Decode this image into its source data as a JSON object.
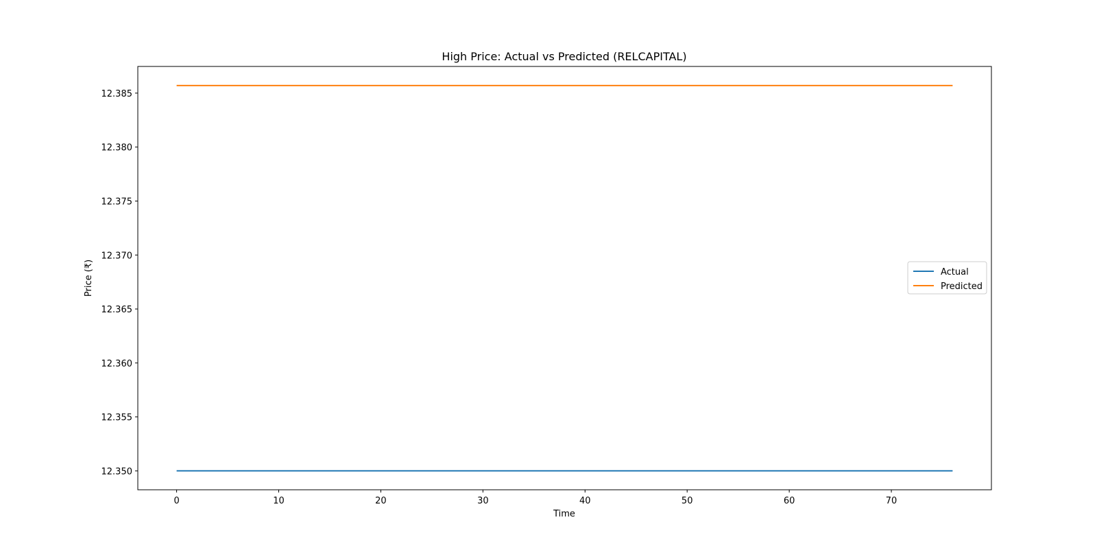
{
  "chart_data": {
    "type": "line",
    "title": "High Price: Actual vs Predicted (RELCAPITAL)",
    "xlabel": "Time",
    "ylabel": "Price (₹)",
    "xlim": [
      -3.8,
      79.8
    ],
    "ylim": [
      12.34825,
      12.38747
    ],
    "x_ticks": [
      0,
      10,
      20,
      30,
      40,
      50,
      60,
      70
    ],
    "y_ticks": [
      12.35,
      12.355,
      12.36,
      12.365,
      12.37,
      12.375,
      12.38,
      12.385
    ],
    "y_tick_labels": [
      "12.350",
      "12.355",
      "12.360",
      "12.365",
      "12.370",
      "12.375",
      "12.380",
      "12.385"
    ],
    "x_range": [
      0,
      76
    ],
    "series": [
      {
        "name": "Actual",
        "color": "#1f77b4",
        "x": [
          0,
          76
        ],
        "values": [
          12.35,
          12.35
        ]
      },
      {
        "name": "Predicted",
        "color": "#ff7f0e",
        "x": [
          0,
          76
        ],
        "values": [
          12.3857,
          12.3857
        ]
      }
    ],
    "legend": {
      "placement": "center-right"
    },
    "grid": false
  }
}
